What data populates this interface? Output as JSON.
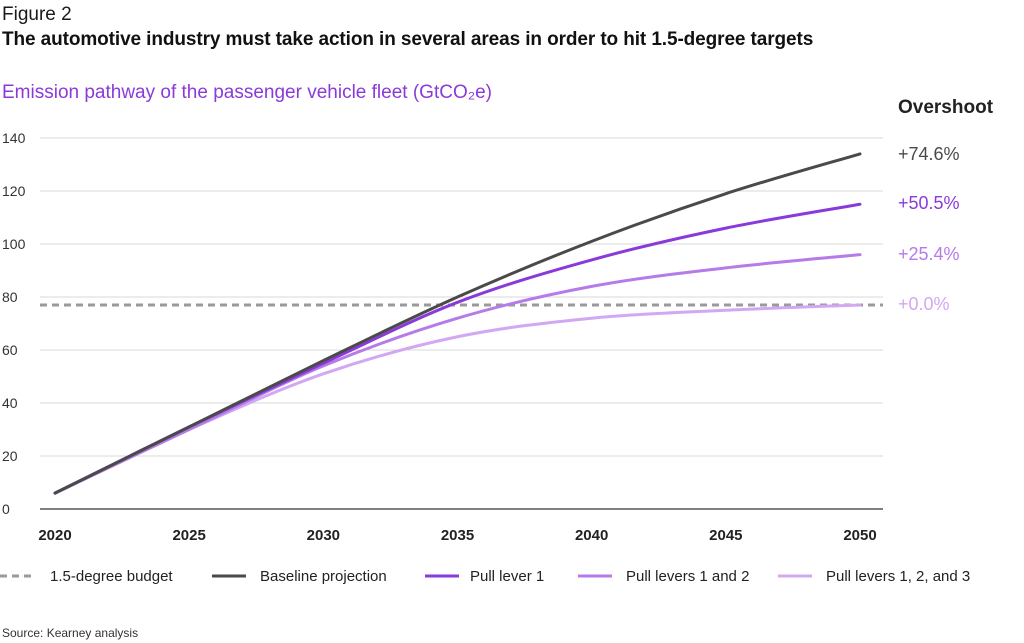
{
  "header": {
    "figure_label": "Figure 2",
    "title": "The automotive industry must take action in several areas in order to hit 1.5-degree targets",
    "subtitle": "Emission pathway of the passenger vehicle fleet (GtCO₂e)",
    "overshoot_heading": "Overshoot"
  },
  "chart_data": {
    "type": "line",
    "title": "Emission pathway of the passenger vehicle fleet (GtCO₂e)",
    "xlabel": "",
    "ylabel": "",
    "xlim": [
      2020,
      2050
    ],
    "ylim": [
      0,
      140
    ],
    "x_ticks": [
      "2020",
      "2025",
      "2030",
      "2035",
      "2040",
      "2045",
      "2050"
    ],
    "y_ticks": [
      "0",
      "20",
      "40",
      "60",
      "80",
      "100",
      "120",
      "140"
    ],
    "grid": "horizontal",
    "legend_position": "bottom",
    "x": [
      2020,
      2025,
      2030,
      2035,
      2040,
      2045,
      2050
    ],
    "series": [
      {
        "name": "1.5-degree budget",
        "values": [
          77,
          77,
          77,
          77,
          77,
          77,
          77
        ],
        "color": "#9a9a9a",
        "style": "dashed"
      },
      {
        "name": "Baseline projection",
        "values": [
          6,
          31,
          56,
          80,
          101,
          119,
          134
        ],
        "color": "#4a4a4a",
        "style": "solid",
        "overshoot": "+74.6%"
      },
      {
        "name": "Pull lever 1",
        "values": [
          6,
          31,
          55,
          78,
          94,
          106,
          115
        ],
        "color": "#8a3ad9",
        "style": "solid",
        "overshoot": "+50.5%"
      },
      {
        "name": "Pull levers 1 and 2",
        "values": [
          6,
          30,
          54,
          72,
          84,
          91,
          96
        ],
        "color": "#b57be8",
        "style": "solid",
        "overshoot": "+25.4%"
      },
      {
        "name": "Pull levers 1, 2, and 3",
        "values": [
          6,
          30,
          51,
          65,
          72,
          75,
          77
        ],
        "color": "#d2a8f2",
        "style": "solid",
        "overshoot": "+0.0%"
      }
    ],
    "overshoot_label_colors": [
      "#4a4a4a",
      "#8a3ad9",
      "#b57be8",
      "#d2a8f2"
    ]
  },
  "footer": {
    "source": "Source: Kearney analysis"
  }
}
